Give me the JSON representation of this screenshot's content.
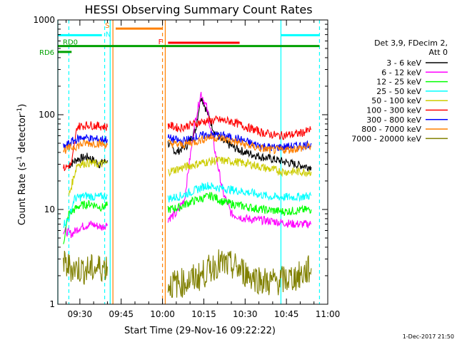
{
  "colors": {
    "background": "#ffffff",
    "axis": "#000000",
    "orange_marker": "#ff8000",
    "cyan_marker": "#00ffff",
    "green_marker": "#00a000",
    "red_marker": "#ff0000"
  },
  "chart_data": {
    "type": "line",
    "title": "HESSI Observing Summary Count Rates",
    "xlabel": "Start Time (29-Nov-16 09:22:22)",
    "ylabel_main": "Count Rate (s",
    "ylabel_sup1": "-1",
    "ylabel_mid": " detector",
    "ylabel_sup2": "-1",
    "ylabel_end": ")",
    "footer_date": "1-Dec-2017 21:50",
    "y_scale": "log",
    "ylim": [
      1,
      1000
    ],
    "xlim": [
      "09:22",
      "11:00"
    ],
    "x_ticks": [
      "09:30",
      "09:45",
      "10:00",
      "10:15",
      "10:30",
      "10:45",
      "11:00"
    ],
    "y_ticks": [
      "1",
      "10",
      "100",
      "1000"
    ],
    "legend": {
      "title_line1": "Det 3,9, FDecim 2,",
      "title_line2": "Att 0",
      "entries": [
        {
          "label": "3 - 6 keV",
          "color": "#000000"
        },
        {
          "label": "6 - 12 keV",
          "color": "#ff00ff"
        },
        {
          "label": "12 - 25 keV",
          "color": "#00ff00"
        },
        {
          "label": "25 - 50 keV",
          "color": "#00ffff"
        },
        {
          "label": "50 - 100 keV",
          "color": "#cccc00"
        },
        {
          "label": "100 - 300 keV",
          "color": "#ff0000"
        },
        {
          "label": "300 - 800 keV",
          "color": "#0000ff"
        },
        {
          "label": "800 - 7000 keV",
          "color": "#ff8000"
        },
        {
          "label": "7000 - 20000 keV",
          "color": "#808000"
        }
      ]
    },
    "markers": {
      "rd0": "RD0",
      "rd6": "RD6",
      "n": "N",
      "s": "S",
      "f": "F"
    },
    "segments": [
      {
        "name": "3 - 6 keV",
        "points": [
          [
            "09:26",
            29
          ],
          [
            "09:29",
            34
          ],
          [
            "09:33",
            36
          ],
          [
            "09:37",
            30
          ],
          [
            "09:40",
            33
          ]
        ]
      },
      {
        "name": "3 - 6 keV",
        "points": [
          [
            "10:02",
            50
          ],
          [
            "10:05",
            40
          ],
          [
            "10:09",
            48
          ],
          [
            "10:12",
            70
          ],
          [
            "10:14",
            160
          ],
          [
            "10:16",
            110
          ],
          [
            "10:19",
            65
          ],
          [
            "10:22",
            52
          ],
          [
            "10:26",
            45
          ],
          [
            "10:30",
            40
          ],
          [
            "10:36",
            36
          ],
          [
            "10:42",
            33
          ],
          [
            "10:48",
            30
          ],
          [
            "10:54",
            28
          ]
        ]
      },
      {
        "name": "6 - 12 keV",
        "points": [
          [
            "09:24",
            6
          ],
          [
            "09:27",
            5.5
          ],
          [
            "09:30",
            6.5
          ],
          [
            "09:34",
            7
          ],
          [
            "09:38",
            6.5
          ],
          [
            "09:40",
            7
          ]
        ]
      },
      {
        "name": "6 - 12 keV",
        "points": [
          [
            "10:02",
            8
          ],
          [
            "10:05",
            9
          ],
          [
            "10:08",
            13
          ],
          [
            "10:10",
            35
          ],
          [
            "10:12",
            90
          ],
          [
            "10:14",
            170
          ],
          [
            "10:16",
            120
          ],
          [
            "10:18",
            60
          ],
          [
            "10:20",
            30
          ],
          [
            "10:22",
            15
          ],
          [
            "10:25",
            9
          ],
          [
            "10:30",
            8
          ],
          [
            "10:40",
            7.5
          ],
          [
            "10:48",
            7
          ],
          [
            "10:54",
            7
          ]
        ]
      },
      {
        "name": "12 - 25 keV",
        "points": [
          [
            "09:24",
            4.5
          ],
          [
            "09:26",
            9
          ],
          [
            "09:30",
            11
          ],
          [
            "09:34",
            11.5
          ],
          [
            "09:38",
            10.5
          ],
          [
            "09:40",
            11
          ]
        ]
      },
      {
        "name": "12 - 25 keV",
        "points": [
          [
            "10:02",
            10
          ],
          [
            "10:06",
            10.5
          ],
          [
            "10:10",
            12
          ],
          [
            "10:14",
            13
          ],
          [
            "10:18",
            14
          ],
          [
            "10:22",
            12
          ],
          [
            "10:28",
            11
          ],
          [
            "10:36",
            10
          ],
          [
            "10:44",
            9.5
          ],
          [
            "10:50",
            9.8
          ],
          [
            "10:54",
            10
          ]
        ]
      },
      {
        "name": "25 - 50 keV",
        "points": [
          [
            "09:24",
            7
          ],
          [
            "09:26",
            8
          ],
          [
            "09:28",
            13
          ],
          [
            "09:32",
            14
          ],
          [
            "09:36",
            13.5
          ],
          [
            "09:40",
            14
          ]
        ]
      },
      {
        "name": "25 - 50 keV",
        "points": [
          [
            "10:02",
            13
          ],
          [
            "10:07",
            14
          ],
          [
            "10:12",
            16
          ],
          [
            "10:16",
            18
          ],
          [
            "10:20",
            17
          ],
          [
            "10:26",
            16
          ],
          [
            "10:32",
            15
          ],
          [
            "10:40",
            13.5
          ],
          [
            "10:48",
            13.5
          ],
          [
            "10:54",
            14
          ]
        ]
      },
      {
        "name": "50 - 100 keV",
        "points": [
          [
            "09:26",
            14
          ],
          [
            "09:29",
            30
          ],
          [
            "09:33",
            31
          ],
          [
            "09:37",
            30
          ],
          [
            "09:40",
            31
          ]
        ]
      },
      {
        "name": "50 - 100 keV",
        "points": [
          [
            "10:02",
            25
          ],
          [
            "10:08",
            28
          ],
          [
            "10:14",
            31
          ],
          [
            "10:20",
            33
          ],
          [
            "10:26",
            32
          ],
          [
            "10:32",
            30
          ],
          [
            "10:38",
            27
          ],
          [
            "10:44",
            25
          ],
          [
            "10:50",
            25
          ],
          [
            "10:54",
            25
          ]
        ]
      },
      {
        "name": "100 - 300 keV",
        "points": [
          [
            "09:24",
            27
          ],
          [
            "09:27",
            30
          ],
          [
            "09:29",
            75
          ],
          [
            "09:33",
            78
          ],
          [
            "09:37",
            76
          ],
          [
            "09:40",
            74
          ]
        ]
      },
      {
        "name": "100 - 300 keV",
        "points": [
          [
            "10:02",
            78
          ],
          [
            "10:06",
            72
          ],
          [
            "10:10",
            78
          ],
          [
            "10:15",
            85
          ],
          [
            "10:20",
            88
          ],
          [
            "10:25",
            85
          ],
          [
            "10:30",
            75
          ],
          [
            "10:36",
            65
          ],
          [
            "10:42",
            60
          ],
          [
            "10:48",
            62
          ],
          [
            "10:52",
            66
          ],
          [
            "10:54",
            70
          ]
        ]
      },
      {
        "name": "300 - 800 keV",
        "points": [
          [
            "09:24",
            45
          ],
          [
            "09:27",
            52
          ],
          [
            "09:31",
            58
          ],
          [
            "09:35",
            55
          ],
          [
            "09:40",
            55
          ]
        ]
      },
      {
        "name": "300 - 800 keV",
        "points": [
          [
            "10:02",
            57
          ],
          [
            "10:07",
            52
          ],
          [
            "10:12",
            58
          ],
          [
            "10:17",
            62
          ],
          [
            "10:22",
            60
          ],
          [
            "10:28",
            55
          ],
          [
            "10:34",
            48
          ],
          [
            "10:40",
            45
          ],
          [
            "10:46",
            46
          ],
          [
            "10:52",
            48
          ],
          [
            "10:54",
            50
          ]
        ]
      },
      {
        "name": "800 - 7000 keV",
        "points": [
          [
            "09:24",
            42
          ],
          [
            "09:28",
            46
          ],
          [
            "09:32",
            50
          ],
          [
            "09:36",
            50
          ],
          [
            "09:40",
            48
          ]
        ]
      },
      {
        "name": "800 - 7000 keV",
        "points": [
          [
            "10:02",
            50
          ],
          [
            "10:07",
            48
          ],
          [
            "10:12",
            52
          ],
          [
            "10:17",
            58
          ],
          [
            "10:22",
            56
          ],
          [
            "10:28",
            50
          ],
          [
            "10:34",
            45
          ],
          [
            "10:40",
            42
          ],
          [
            "10:46",
            43
          ],
          [
            "10:52",
            45
          ],
          [
            "10:54",
            47
          ]
        ]
      },
      {
        "name": "7000 - 20000 keV",
        "points": [
          [
            "09:24",
            2.6
          ],
          [
            "09:28",
            2.4
          ],
          [
            "09:32",
            2.3
          ],
          [
            "09:36",
            2.4
          ],
          [
            "09:40",
            2.5
          ]
        ]
      },
      {
        "name": "7000 - 20000 keV",
        "points": [
          [
            "10:02",
            1.6
          ],
          [
            "10:08",
            1.7
          ],
          [
            "10:14",
            2.0
          ],
          [
            "10:20",
            2.7
          ],
          [
            "10:26",
            2.5
          ],
          [
            "10:32",
            2.0
          ],
          [
            "10:38",
            1.7
          ],
          [
            "10:44",
            1.8
          ],
          [
            "10:50",
            2.0
          ],
          [
            "10:54",
            2.4
          ]
        ]
      }
    ],
    "vertical_lines": [
      {
        "time": "09:22",
        "color": "#00ffff",
        "style": "solid"
      },
      {
        "time": "09:26",
        "color": "#00ffff",
        "style": "dashed"
      },
      {
        "time": "09:39",
        "color": "#00ffff",
        "style": "dashed"
      },
      {
        "time": "09:41",
        "color": "#00ffff",
        "style": "solid"
      },
      {
        "time": "09:42",
        "color": "#ff8000",
        "style": "solid"
      },
      {
        "time": "10:00",
        "color": "#ff8000",
        "style": "dashed"
      },
      {
        "time": "10:01",
        "color": "#ff8000",
        "style": "solid"
      },
      {
        "time": "10:43",
        "color": "#00ffff",
        "style": "solid"
      },
      {
        "time": "10:57",
        "color": "#00ffff",
        "style": "dashed"
      }
    ],
    "horizontal_bars": [
      {
        "label_key": "rd0",
        "color": "#00a000",
        "x0": "09:22",
        "x1": "10:57",
        "y": 530
      },
      {
        "label_key": "rd6",
        "color": "#00a000",
        "x0": "09:22",
        "x1": "09:27",
        "y": 460
      },
      {
        "label_key": "n",
        "color": "#00ffff",
        "x0": "09:22",
        "x1": "09:38",
        "y": 690
      },
      {
        "label_key": "n",
        "color": "#00ffff",
        "x0": "10:43",
        "x1": "10:57",
        "y": 690
      },
      {
        "label_key": "s",
        "color": "#ff8000",
        "x0": "09:43",
        "x1": "10:00",
        "y": 810
      },
      {
        "label_key": "f",
        "color": "#ff0000",
        "x0": "10:02",
        "x1": "10:28",
        "y": 575
      }
    ]
  }
}
